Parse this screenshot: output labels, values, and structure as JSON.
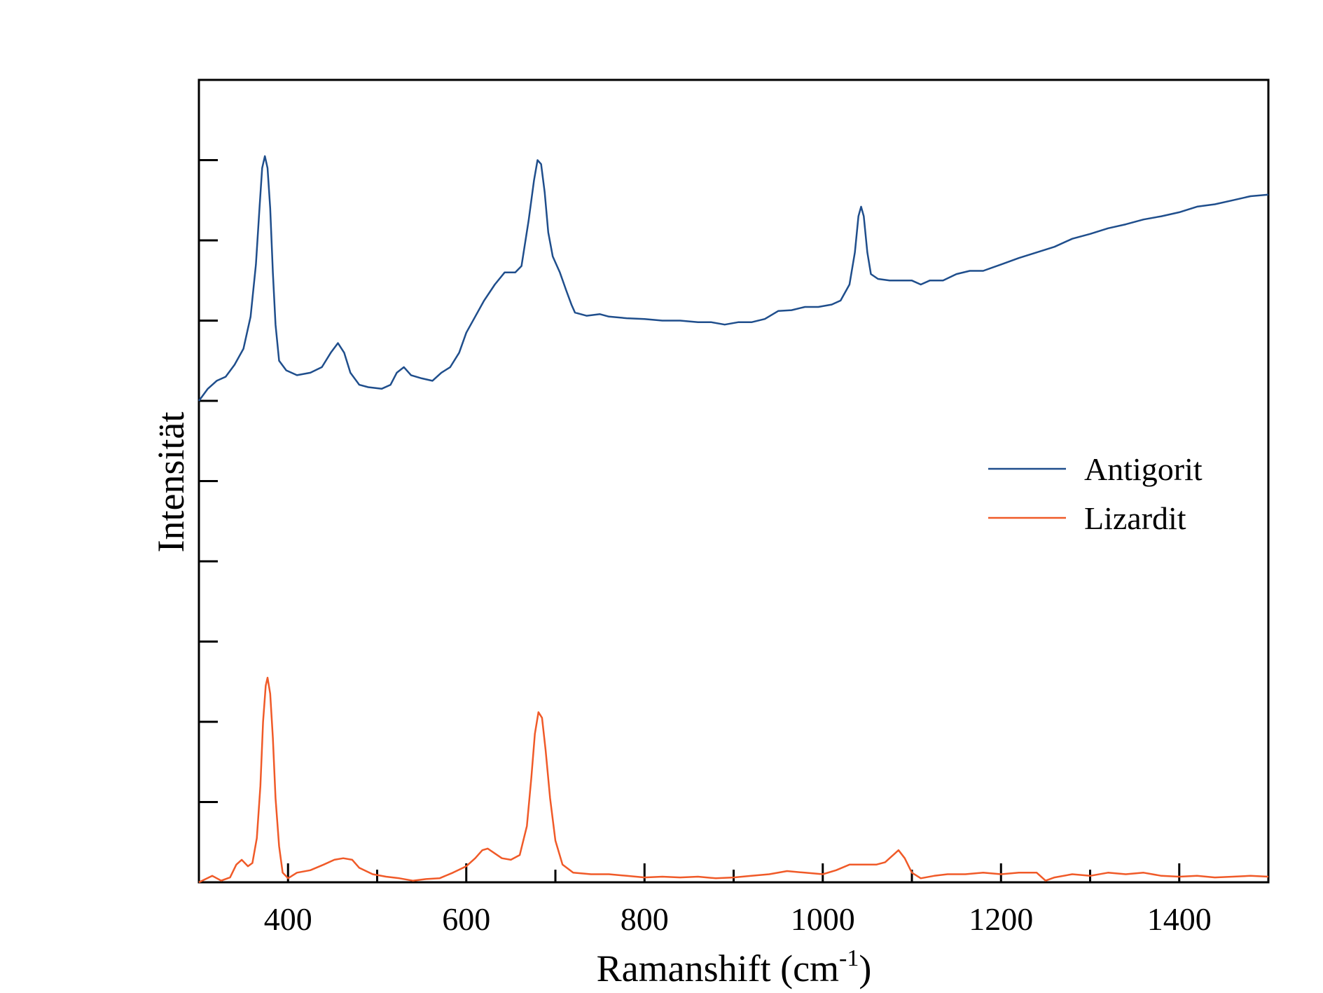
{
  "chart_data": {
    "type": "line",
    "title": "",
    "xlabel": "Ramanshift (cm",
    "xlabel_sup": "-1",
    "xlabel_close": ")",
    "ylabel": "Intensität",
    "xlim": [
      300,
      1500
    ],
    "ylim": [
      0,
      10
    ],
    "x_tick_labels": [
      "400",
      "600",
      "800",
      "1000",
      "1200",
      "1400"
    ],
    "grid": false,
    "legend_position": "right",
    "y_tick_labels_shown": false,
    "series": [
      {
        "name": "Antigorit",
        "color": "#1f4e8c",
        "points": [
          [
            300,
            6.0
          ],
          [
            310,
            6.15
          ],
          [
            320,
            6.25
          ],
          [
            330,
            6.3
          ],
          [
            340,
            6.45
          ],
          [
            350,
            6.65
          ],
          [
            358,
            7.05
          ],
          [
            364,
            7.7
          ],
          [
            368,
            8.4
          ],
          [
            371,
            8.9
          ],
          [
            374,
            9.05
          ],
          [
            377,
            8.9
          ],
          [
            380,
            8.4
          ],
          [
            383,
            7.6
          ],
          [
            386,
            6.95
          ],
          [
            390,
            6.5
          ],
          [
            398,
            6.38
          ],
          [
            410,
            6.32
          ],
          [
            425,
            6.35
          ],
          [
            438,
            6.42
          ],
          [
            448,
            6.6
          ],
          [
            456,
            6.72
          ],
          [
            463,
            6.6
          ],
          [
            470,
            6.35
          ],
          [
            480,
            6.2
          ],
          [
            490,
            6.17
          ],
          [
            505,
            6.15
          ],
          [
            515,
            6.2
          ],
          [
            522,
            6.35
          ],
          [
            530,
            6.42
          ],
          [
            538,
            6.32
          ],
          [
            550,
            6.28
          ],
          [
            562,
            6.25
          ],
          [
            572,
            6.35
          ],
          [
            582,
            6.42
          ],
          [
            592,
            6.6
          ],
          [
            600,
            6.85
          ],
          [
            610,
            7.05
          ],
          [
            620,
            7.25
          ],
          [
            632,
            7.45
          ],
          [
            643,
            7.6
          ],
          [
            655,
            7.6
          ],
          [
            662,
            7.68
          ],
          [
            670,
            8.25
          ],
          [
            676,
            8.75
          ],
          [
            680,
            9.0
          ],
          [
            684,
            8.95
          ],
          [
            688,
            8.6
          ],
          [
            692,
            8.1
          ],
          [
            697,
            7.8
          ],
          [
            705,
            7.6
          ],
          [
            712,
            7.38
          ],
          [
            718,
            7.2
          ],
          [
            722,
            7.1
          ],
          [
            735,
            7.06
          ],
          [
            750,
            7.08
          ],
          [
            760,
            7.05
          ],
          [
            780,
            7.03
          ],
          [
            800,
            7.02
          ],
          [
            820,
            7.0
          ],
          [
            840,
            7.0
          ],
          [
            860,
            6.98
          ],
          [
            875,
            6.98
          ],
          [
            890,
            6.95
          ],
          [
            905,
            6.98
          ],
          [
            920,
            6.98
          ],
          [
            935,
            7.02
          ],
          [
            950,
            7.12
          ],
          [
            965,
            7.13
          ],
          [
            980,
            7.17
          ],
          [
            995,
            7.17
          ],
          [
            1010,
            7.2
          ],
          [
            1020,
            7.25
          ],
          [
            1030,
            7.45
          ],
          [
            1036,
            7.85
          ],
          [
            1040,
            8.3
          ],
          [
            1043,
            8.42
          ],
          [
            1046,
            8.3
          ],
          [
            1050,
            7.85
          ],
          [
            1054,
            7.58
          ],
          [
            1062,
            7.52
          ],
          [
            1075,
            7.5
          ],
          [
            1090,
            7.5
          ],
          [
            1100,
            7.5
          ],
          [
            1110,
            7.45
          ],
          [
            1120,
            7.5
          ],
          [
            1135,
            7.5
          ],
          [
            1150,
            7.58
          ],
          [
            1165,
            7.62
          ],
          [
            1180,
            7.62
          ],
          [
            1200,
            7.7
          ],
          [
            1220,
            7.78
          ],
          [
            1240,
            7.85
          ],
          [
            1260,
            7.92
          ],
          [
            1280,
            8.02
          ],
          [
            1300,
            8.08
          ],
          [
            1320,
            8.15
          ],
          [
            1340,
            8.2
          ],
          [
            1360,
            8.26
          ],
          [
            1380,
            8.3
          ],
          [
            1400,
            8.35
          ],
          [
            1420,
            8.42
          ],
          [
            1440,
            8.45
          ],
          [
            1460,
            8.5
          ],
          [
            1480,
            8.55
          ],
          [
            1500,
            8.57
          ]
        ]
      },
      {
        "name": "Lizardit",
        "color": "#f05a28",
        "points": [
          [
            300,
            0.0
          ],
          [
            315,
            0.08
          ],
          [
            325,
            0.02
          ],
          [
            335,
            0.06
          ],
          [
            342,
            0.22
          ],
          [
            348,
            0.28
          ],
          [
            355,
            0.2
          ],
          [
            360,
            0.24
          ],
          [
            365,
            0.55
          ],
          [
            369,
            1.2
          ],
          [
            372,
            2.0
          ],
          [
            375,
            2.45
          ],
          [
            377,
            2.55
          ],
          [
            380,
            2.35
          ],
          [
            383,
            1.8
          ],
          [
            386,
            1.05
          ],
          [
            390,
            0.45
          ],
          [
            394,
            0.12
          ],
          [
            400,
            0.05
          ],
          [
            410,
            0.12
          ],
          [
            425,
            0.15
          ],
          [
            440,
            0.22
          ],
          [
            452,
            0.28
          ],
          [
            462,
            0.3
          ],
          [
            472,
            0.28
          ],
          [
            480,
            0.18
          ],
          [
            495,
            0.1
          ],
          [
            510,
            0.07
          ],
          [
            525,
            0.05
          ],
          [
            540,
            0.02
          ],
          [
            555,
            0.04
          ],
          [
            570,
            0.05
          ],
          [
            585,
            0.12
          ],
          [
            600,
            0.2
          ],
          [
            610,
            0.3
          ],
          [
            618,
            0.4
          ],
          [
            624,
            0.42
          ],
          [
            632,
            0.36
          ],
          [
            640,
            0.3
          ],
          [
            650,
            0.28
          ],
          [
            660,
            0.34
          ],
          [
            668,
            0.7
          ],
          [
            673,
            1.3
          ],
          [
            677,
            1.85
          ],
          [
            681,
            2.12
          ],
          [
            685,
            2.05
          ],
          [
            689,
            1.65
          ],
          [
            694,
            1.05
          ],
          [
            700,
            0.52
          ],
          [
            708,
            0.22
          ],
          [
            720,
            0.12
          ],
          [
            740,
            0.1
          ],
          [
            760,
            0.1
          ],
          [
            780,
            0.08
          ],
          [
            800,
            0.06
          ],
          [
            820,
            0.07
          ],
          [
            840,
            0.06
          ],
          [
            860,
            0.07
          ],
          [
            880,
            0.05
          ],
          [
            900,
            0.06
          ],
          [
            920,
            0.08
          ],
          [
            940,
            0.1
          ],
          [
            960,
            0.14
          ],
          [
            980,
            0.12
          ],
          [
            1000,
            0.1
          ],
          [
            1015,
            0.15
          ],
          [
            1030,
            0.22
          ],
          [
            1045,
            0.22
          ],
          [
            1060,
            0.22
          ],
          [
            1070,
            0.25
          ],
          [
            1080,
            0.35
          ],
          [
            1085,
            0.4
          ],
          [
            1092,
            0.3
          ],
          [
            1100,
            0.12
          ],
          [
            1110,
            0.05
          ],
          [
            1125,
            0.08
          ],
          [
            1140,
            0.1
          ],
          [
            1160,
            0.1
          ],
          [
            1180,
            0.12
          ],
          [
            1200,
            0.1
          ],
          [
            1220,
            0.12
          ],
          [
            1240,
            0.12
          ],
          [
            1250,
            0.02
          ],
          [
            1260,
            0.06
          ],
          [
            1280,
            0.1
          ],
          [
            1300,
            0.08
          ],
          [
            1320,
            0.12
          ],
          [
            1340,
            0.1
          ],
          [
            1360,
            0.12
          ],
          [
            1380,
            0.08
          ],
          [
            1400,
            0.07
          ],
          [
            1420,
            0.08
          ],
          [
            1440,
            0.06
          ],
          [
            1460,
            0.07
          ],
          [
            1480,
            0.08
          ],
          [
            1500,
            0.07
          ]
        ]
      }
    ]
  }
}
